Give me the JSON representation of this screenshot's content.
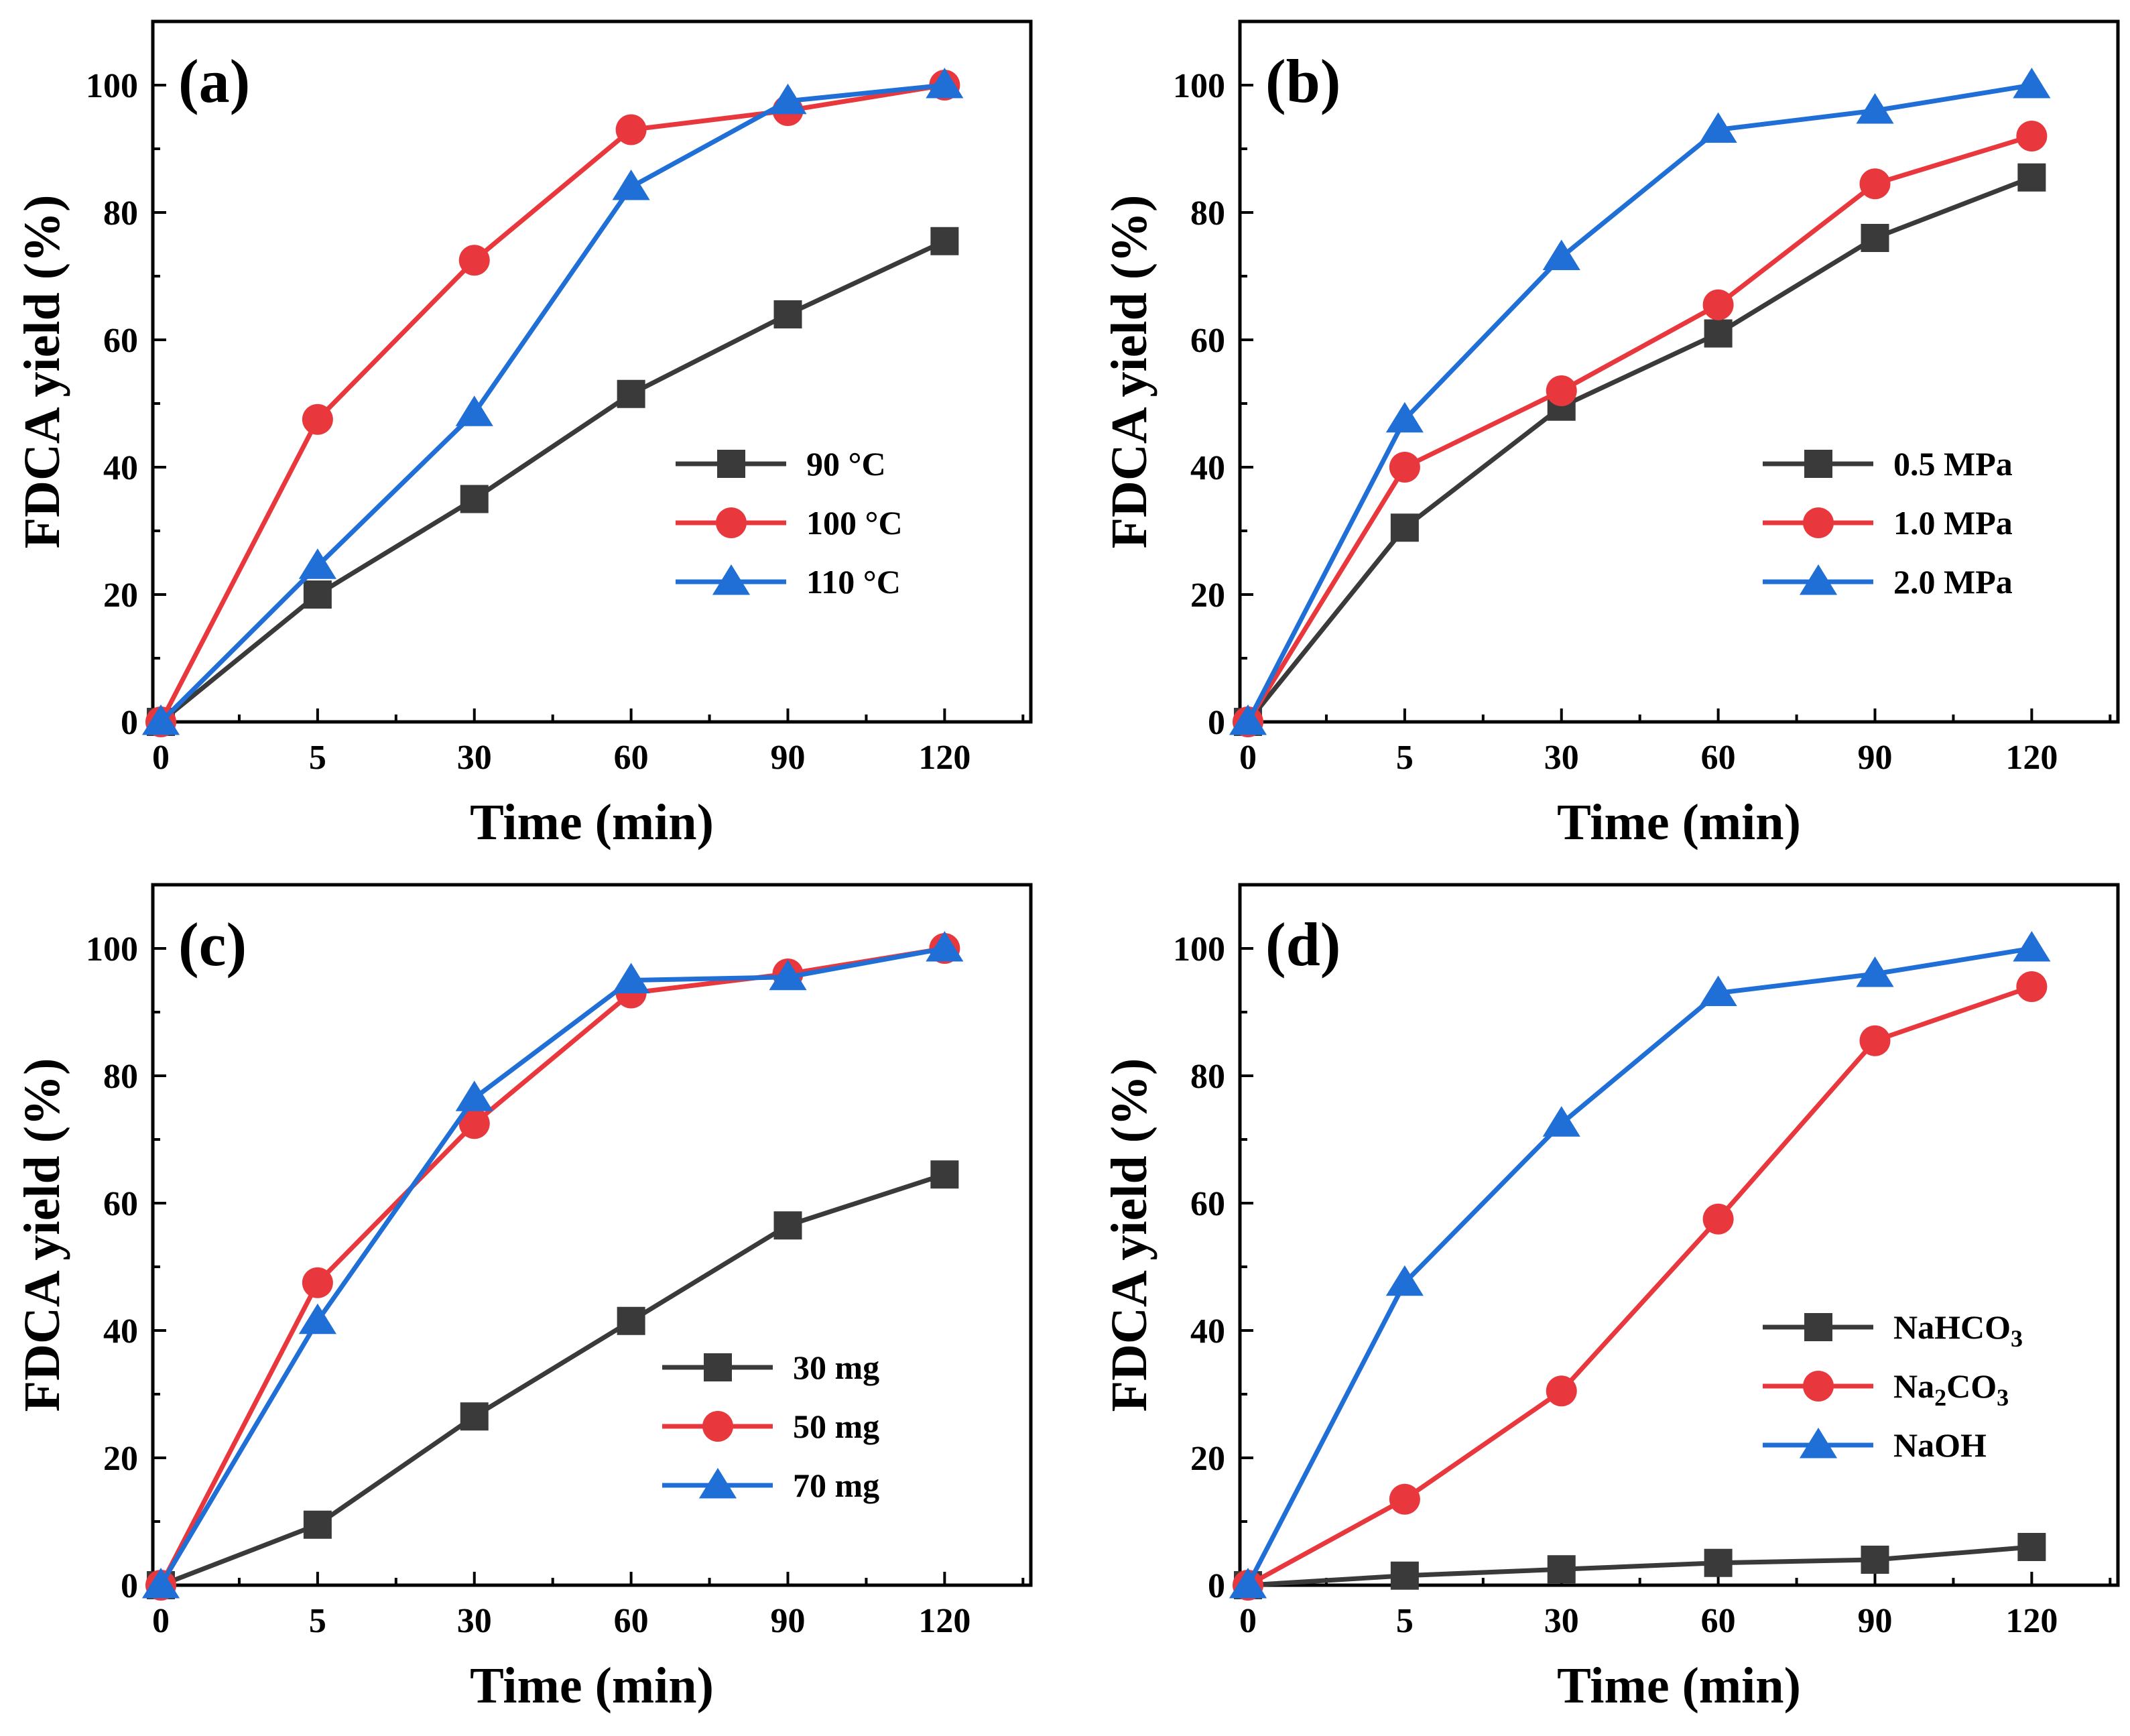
{
  "colors": {
    "black": "#3a3a3a",
    "red": "#e8383d",
    "blue": "#1f6fd6"
  },
  "chart_data": [
    {
      "type": "line",
      "panel_label": "(a)",
      "xlabel": "Time (min)",
      "ylabel": "FDCA yield (%)",
      "categories": [
        "0",
        "5",
        "30",
        "60",
        "90",
        "120"
      ],
      "ylim": [
        0,
        110
      ],
      "yticks": [
        "0",
        "20",
        "40",
        "60",
        "80",
        "100"
      ],
      "legend_position": "right-middle",
      "series": [
        {
          "name": "90 °C",
          "marker": "square",
          "color_key": "black",
          "values": [
            0,
            20,
            35,
            51.5,
            64,
            75.5
          ]
        },
        {
          "name": "100 °C",
          "marker": "circle",
          "color_key": "red",
          "values": [
            0,
            47.5,
            72.5,
            93,
            96,
            100
          ]
        },
        {
          "name": "110 °C",
          "marker": "triangle",
          "color_key": "blue",
          "values": [
            0,
            24.5,
            48.5,
            84,
            97.5,
            100
          ]
        }
      ]
    },
    {
      "type": "line",
      "panel_label": "(b)",
      "xlabel": "Time (min)",
      "ylabel": "FDCA yield (%)",
      "categories": [
        "0",
        "5",
        "30",
        "60",
        "90",
        "120"
      ],
      "ylim": [
        0,
        110
      ],
      "yticks": [
        "0",
        "20",
        "40",
        "60",
        "80",
        "100"
      ],
      "legend_position": "right-middle",
      "series": [
        {
          "name": "0.5 MPa",
          "marker": "square",
          "color_key": "black",
          "values": [
            0,
            30.5,
            49.5,
            61,
            76,
            85.5
          ]
        },
        {
          "name": "1.0 MPa",
          "marker": "circle",
          "color_key": "red",
          "values": [
            0,
            40,
            52,
            65.5,
            84.5,
            92
          ]
        },
        {
          "name": "2.0 MPa",
          "marker": "triangle",
          "color_key": "blue",
          "values": [
            0,
            47.5,
            73,
            93,
            96,
            100
          ]
        }
      ]
    },
    {
      "type": "line",
      "panel_label": "(c)",
      "xlabel": "Time (min)",
      "ylabel": "FDCA yield (%)",
      "categories": [
        "0",
        "5",
        "30",
        "60",
        "90",
        "120"
      ],
      "ylim": [
        0,
        110
      ],
      "yticks": [
        "0",
        "20",
        "40",
        "60",
        "80",
        "100"
      ],
      "legend_position": "right-lower",
      "series": [
        {
          "name": "30 mg",
          "marker": "square",
          "color_key": "black",
          "values": [
            0,
            9.5,
            26.5,
            41.5,
            56.5,
            64.5
          ]
        },
        {
          "name": "50 mg",
          "marker": "circle",
          "color_key": "red",
          "values": [
            0,
            47.5,
            72.5,
            93,
            96,
            100
          ]
        },
        {
          "name": "70 mg",
          "marker": "triangle",
          "color_key": "blue",
          "values": [
            0,
            41.5,
            76.5,
            95,
            95.5,
            100
          ]
        }
      ]
    },
    {
      "type": "line",
      "panel_label": "(d)",
      "xlabel": "Time (min)",
      "ylabel": "FDCA yield (%)",
      "categories": [
        "0",
        "5",
        "30",
        "60",
        "90",
        "120"
      ],
      "ylim": [
        0,
        110
      ],
      "yticks": [
        "0",
        "20",
        "40",
        "60",
        "80",
        "100"
      ],
      "legend_position": "right-middle",
      "series": [
        {
          "name": "NaHCO3",
          "label_parts": [
            [
              "Na",
              ""
            ],
            [
              "H",
              ""
            ],
            [
              "C",
              ""
            ],
            [
              "O",
              ""
            ],
            [
              "3",
              "sub"
            ]
          ],
          "marker": "square",
          "color_key": "black",
          "values": [
            0,
            1.5,
            2.5,
            3.5,
            4,
            6
          ]
        },
        {
          "name": "Na2CO3",
          "label_parts": [
            [
              "Na",
              ""
            ],
            [
              "2",
              "sub"
            ],
            [
              "CO",
              ""
            ],
            [
              "3",
              "sub"
            ]
          ],
          "marker": "circle",
          "color_key": "red",
          "values": [
            0,
            13.5,
            30.5,
            57.5,
            85.5,
            94
          ]
        },
        {
          "name": "NaOH",
          "label_parts": [
            [
              "NaOH",
              ""
            ]
          ],
          "marker": "triangle",
          "color_key": "blue",
          "values": [
            0,
            47.5,
            72.5,
            93,
            96,
            100
          ]
        }
      ]
    }
  ]
}
